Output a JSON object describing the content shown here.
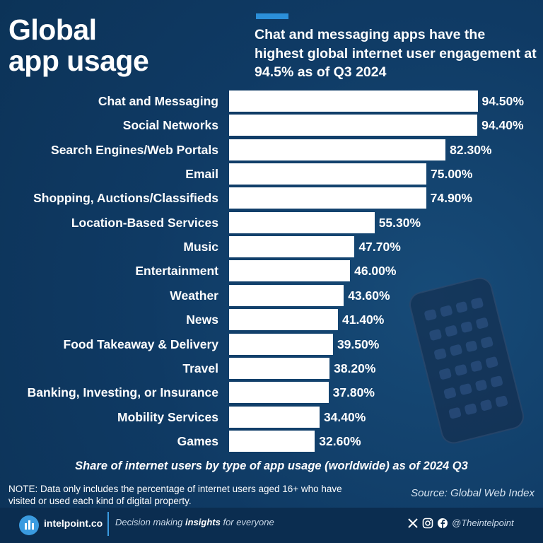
{
  "header": {
    "title_line1": "Global",
    "title_line2": "app usage",
    "subtitle": "Chat and messaging apps have the highest global internet user engagement at 94.5% as of Q3 2024"
  },
  "chart_data": {
    "type": "bar",
    "orientation": "horizontal",
    "categories": [
      "Chat and Messaging",
      "Social Networks",
      "Search Engines/Web Portals",
      "Email",
      "Shopping, Auctions/Classifieds",
      "Location-Based Services",
      "Music",
      "Entertainment",
      "Weather",
      "News",
      "Food Takeaway & Delivery",
      "Travel",
      "Banking, Investing, or Insurance",
      "Mobility Services",
      "Games"
    ],
    "values": [
      94.5,
      94.4,
      82.3,
      75.0,
      74.9,
      55.3,
      47.7,
      46.0,
      43.6,
      41.4,
      39.5,
      38.2,
      37.8,
      34.4,
      32.6
    ],
    "value_labels": [
      "94.50%",
      "94.40%",
      "82.30%",
      "75.00%",
      "74.90%",
      "55.30%",
      "47.70%",
      "46.00%",
      "43.60%",
      "41.40%",
      "39.50%",
      "38.20%",
      "37.80%",
      "34.40%",
      "32.60%"
    ],
    "unit": "%",
    "xlim": [
      0,
      100
    ],
    "title": "Share of internet users by type of app usage (worldwide) as of 2024 Q3",
    "bar_color": "#ffffff"
  },
  "footnote": {
    "note": "NOTE: Data only includes the percentage of internet users aged 16+ who have visited or used each kind of digital property.",
    "source": "Source: Global Web Index"
  },
  "footer": {
    "brand": "intelpoint.co",
    "tagline_pre": "Decision making ",
    "tagline_bold": "insights",
    "tagline_post": " for everyone",
    "handle": "@Theintelpoint",
    "icons": [
      "x-icon",
      "instagram-icon",
      "facebook-icon"
    ]
  },
  "colors": {
    "background": "#0f3a64",
    "accent": "#2b8fd9",
    "footer": "#0b2d50"
  }
}
